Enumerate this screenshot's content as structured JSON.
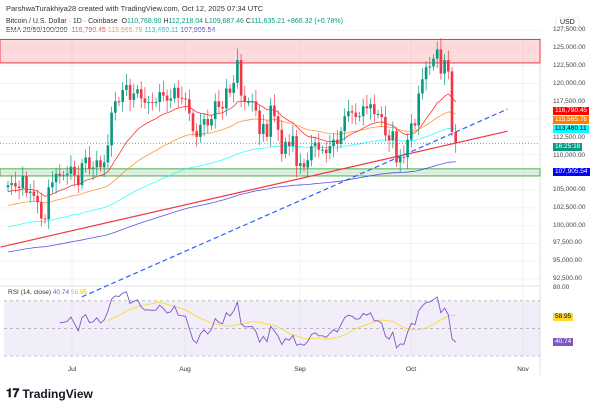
{
  "header": {
    "credit": "ParshwaTurakhiya28 created with TradingView.com, Oct 12, 2025 07:34 UTC",
    "symbol": "Bitcoin / U.S. Dollar · 1D · Coinbase",
    "o_label": "O",
    "o": "110,768.90",
    "h_label": "H",
    "h": "112,218.04",
    "l_label": "L",
    "l": "109,687.46",
    "c_label": "C",
    "c": "111,635.21",
    "change": "+866.32 (+0.78%)",
    "ema_label": "EMA 20/50/100/200",
    "ema20": "116,790.45",
    "ema50": "115,565.78",
    "ema100": "113,460.11",
    "ema200": "107,905.54"
  },
  "colors": {
    "up": "#089981",
    "down": "#f23645",
    "ema20": "#ff0000",
    "ema50": "#ff8000",
    "ema100": "#00ffff",
    "ema200": "#2a2ae0",
    "rsi": "#7e57c2",
    "rsi_ma": "#fdd835"
  },
  "axis": {
    "currency": "USD",
    "price_ticks": [
      "127,500.00",
      "125,000.00",
      "122,500.00",
      "120,000.00",
      "117,500.00",
      "112,500.00",
      "110,000.00",
      "105,000.00",
      "102,500.00",
      "100,000.00",
      "97,500.00",
      "95,000.00",
      "92,500.00"
    ],
    "badges": {
      "ema20": "116,790.45",
      "ema50": "115,565.78",
      "ema100": "113,460.11",
      "countdown": "16:25:18",
      "ema200": "107,905.54"
    },
    "rsi_tick": "80.00",
    "rsi_badges": {
      "ma": "58.95",
      "rsi": "40.74"
    },
    "time_ticks": [
      "Jul",
      "Aug",
      "Sep",
      "Oct",
      "Nov"
    ]
  },
  "rsi": {
    "label": "RSI (14, close)",
    "value": "40.74",
    "ma": "58.95"
  },
  "brand": "TradingView",
  "chart_data": {
    "type": "candlestick",
    "start_date": "2025-06-12",
    "ylim": [
      90000,
      128000
    ],
    "closes": [
      105.7,
      106.0,
      105.5,
      105.3,
      107.0,
      104.6,
      104.8,
      104.2,
      103.3,
      101.0,
      100.9,
      105.4,
      106.1,
      107.3,
      107.0,
      107.1,
      107.3,
      108.3,
      107.1,
      105.7,
      108.8,
      109.6,
      108.0,
      108.2,
      109.2,
      108.2,
      108.9,
      111.3,
      115.9,
      117.5,
      117.4,
      119.1,
      119.8,
      117.7,
      118.6,
      119.2,
      117.9,
      117.3,
      117.4,
      117.3,
      117.4,
      118.8,
      118.3,
      117.6,
      117.9,
      119.4,
      118.0,
      117.9,
      117.8,
      115.8,
      113.3,
      112.5,
      114.2,
      115.0,
      114.1,
      115.0,
      117.5,
      116.7,
      116.5,
      119.3,
      118.7,
      120.1,
      123.3,
      118.3,
      117.4,
      117.4,
      117.5,
      116.2,
      112.9,
      114.3,
      112.5,
      116.9,
      115.4,
      113.5,
      110.1,
      111.8,
      111.2,
      112.6,
      108.4,
      108.8,
      108.2,
      109.2,
      111.2,
      111.7,
      110.7,
      110.7,
      110.2,
      111.2,
      112.1,
      111.5,
      113.3,
      115.4,
      116.1,
      115.9,
      115.3,
      115.4,
      116.8,
      116.5,
      117.1,
      115.7,
      115.7,
      115.3,
      112.7,
      112.0,
      113.3,
      108.9,
      109.7,
      109.6,
      112.1,
      114.4,
      114.1,
      118.6,
      120.6,
      122.3,
      122.4,
      123.5,
      124.8,
      121.4,
      123.3,
      121.7,
      113.2,
      111.6
    ],
    "closes_unit": "thousand USD",
    "zones": [
      {
        "name": "resistance",
        "from": 122900,
        "to": 126200,
        "color": "#f23645"
      },
      {
        "name": "support",
        "from": 107000,
        "to": 108000,
        "color": "#4caf50"
      }
    ],
    "trendlines": [
      {
        "name": "red-trendline",
        "style": "solid",
        "color": "#f23645",
        "p1": [
          "2025-06-10",
          97000
        ],
        "p2": [
          "2025-10-25",
          113300
        ]
      },
      {
        "name": "blue-trendline",
        "style": "dashed",
        "color": "#2962ff",
        "p1": [
          "2025-07-02",
          90000
        ],
        "p2": [
          "2025-10-25",
          116400
        ]
      }
    ],
    "rsi_levels": [
      30,
      50,
      70
    ]
  }
}
